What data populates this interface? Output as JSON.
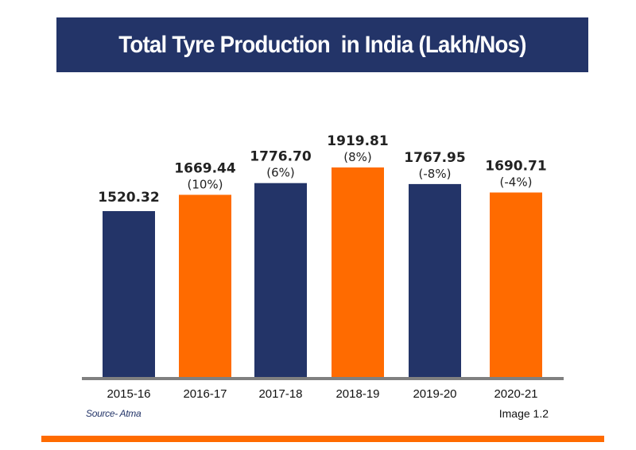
{
  "chart_data": {
    "type": "bar",
    "title": "Total Tyre Production  in India (Lakh/Nos)",
    "xlabel": "",
    "ylabel": "",
    "categories": [
      "2015-16",
      "2016-17",
      "2017-18",
      "2018-19",
      "2019-20",
      "2020-21"
    ],
    "values": [
      1520.32,
      1669.44,
      1776.7,
      1919.81,
      1767.95,
      1690.71
    ],
    "value_labels": [
      "1520.32",
      "1669.44",
      "1776.70",
      "1919.81",
      "1767.95",
      "1690.71"
    ],
    "growth_labels": [
      "",
      "(10%)",
      "(6%)",
      "(8%)",
      "(-8%)",
      "(-4%)"
    ],
    "bar_colors": [
      "#233468",
      "#ff6b00",
      "#233468",
      "#ff6b00",
      "#233468",
      "#ff6b00"
    ],
    "ylim": [
      0,
      2200
    ],
    "grid": false,
    "legend": "none"
  },
  "footer": {
    "source": "Source- Atma",
    "image_ref": "Image 1.2"
  },
  "colors": {
    "navy": "#233468",
    "orange": "#ff6b00",
    "axis": "#808080"
  }
}
